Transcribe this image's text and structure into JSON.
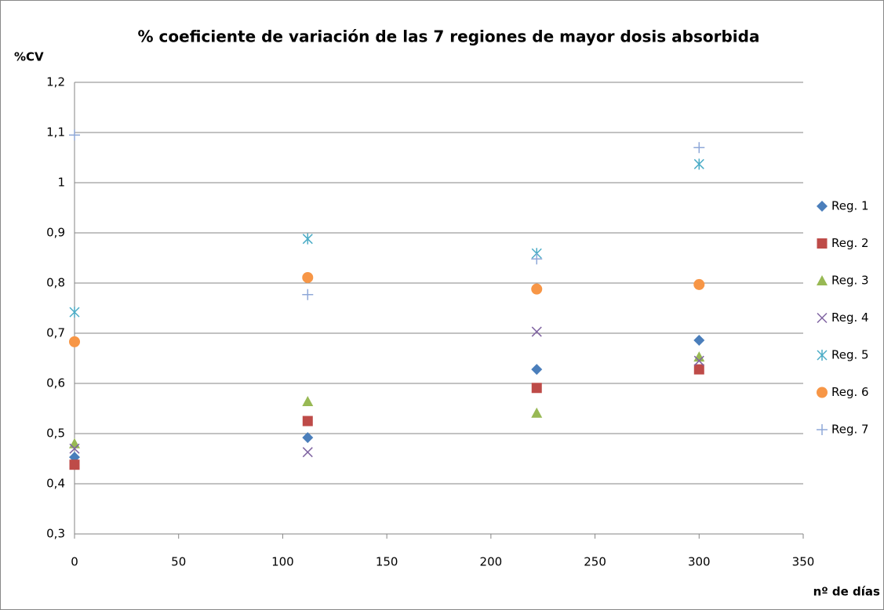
{
  "chart_data": {
    "type": "scatter",
    "title": "% coeficiente de variación de las 7 regiones de mayor dosis absorbida",
    "y_label": "%CV",
    "x_label": "nº de días",
    "x": [
      0,
      112,
      222,
      300
    ],
    "xlim": [
      0,
      350
    ],
    "xticks": [
      0,
      50,
      100,
      150,
      200,
      250,
      300,
      350
    ],
    "ylim": [
      0.3,
      1.2
    ],
    "yticks": [
      {
        "value": 0.3,
        "label": "0,3"
      },
      {
        "value": 0.4,
        "label": "0,4"
      },
      {
        "value": 0.5,
        "label": "0,5"
      },
      {
        "value": 0.6,
        "label": "0,6"
      },
      {
        "value": 0.7,
        "label": "0,7"
      },
      {
        "value": 0.8,
        "label": "0,8"
      },
      {
        "value": 0.9,
        "label": "0,9"
      },
      1,
      {
        "value": 1.1,
        "label": "1,1"
      },
      {
        "value": 1.2,
        "label": "1,2"
      }
    ],
    "grid": true,
    "legend": "right",
    "series": [
      {
        "name": "Reg. 1",
        "color": "#4a7ebb",
        "marker": "diamond",
        "values": [
          0.453,
          0.492,
          0.628,
          0.686
        ]
      },
      {
        "name": "Reg. 2",
        "color": "#be4b48",
        "marker": "square",
        "values": [
          0.438,
          0.525,
          0.591,
          0.628
        ]
      },
      {
        "name": "Reg. 3",
        "color": "#98b954",
        "marker": "triangle",
        "values": [
          0.48,
          0.564,
          0.541,
          0.653
        ]
      },
      {
        "name": "Reg. 4",
        "color": "#8064a2",
        "marker": "x",
        "values": [
          0.47,
          0.463,
          0.703,
          0.645
        ]
      },
      {
        "name": "Reg. 5",
        "color": "#4bacc6",
        "marker": "asterisk",
        "values": [
          0.742,
          0.888,
          0.859,
          1.037
        ]
      },
      {
        "name": "Reg. 6",
        "color": "#f79646",
        "marker": "circle",
        "values": [
          0.683,
          0.811,
          0.788,
          0.797
        ]
      },
      {
        "name": "Reg. 7",
        "color": "#8fa8d8",
        "marker": "plus",
        "values": [
          1.095,
          0.777,
          0.848,
          1.07
        ]
      }
    ]
  }
}
